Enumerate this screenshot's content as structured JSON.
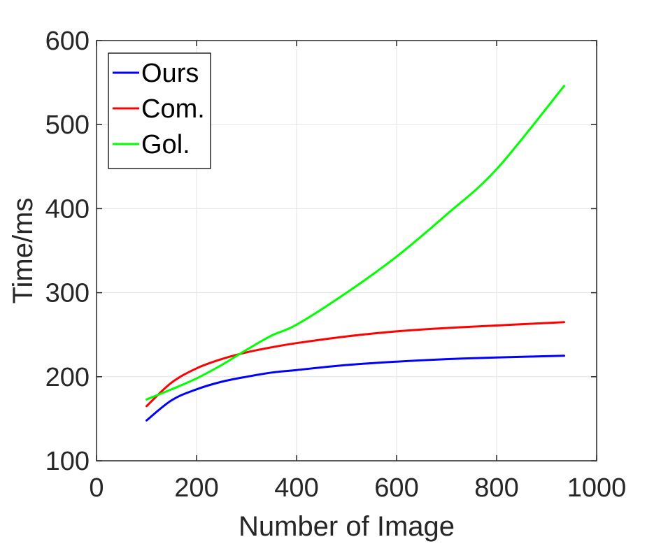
{
  "chart_data": {
    "type": "line",
    "xlabel": "Number of Image",
    "ylabel": "Time/ms",
    "xlim": [
      0,
      1000
    ],
    "ylim": [
      100,
      600
    ],
    "xticks": [
      "0",
      "200",
      "400",
      "600",
      "800",
      "1000"
    ],
    "yticks": [
      "100",
      "200",
      "300",
      "400",
      "500",
      "600"
    ],
    "grid": true,
    "legend_position": "top-left",
    "x": [
      100,
      150,
      200,
      250,
      300,
      350,
      400,
      500,
      600,
      700,
      800,
      935
    ],
    "series": [
      {
        "name": "Ours",
        "color": "#0000ff",
        "values": [
          148,
          172,
          185,
          194,
          200,
          205,
          208,
          214,
          218,
          221,
          223,
          225
        ]
      },
      {
        "name": "Com.",
        "color": "#ff0000",
        "values": [
          165,
          193,
          210,
          221,
          229,
          235,
          240,
          248,
          254,
          258,
          261,
          265
        ]
      },
      {
        "name": "Gol.",
        "color": "#00ff00",
        "values": [
          173,
          185,
          198,
          214,
          232,
          249,
          262,
          300,
          343,
          393,
          447,
          546
        ]
      }
    ]
  }
}
